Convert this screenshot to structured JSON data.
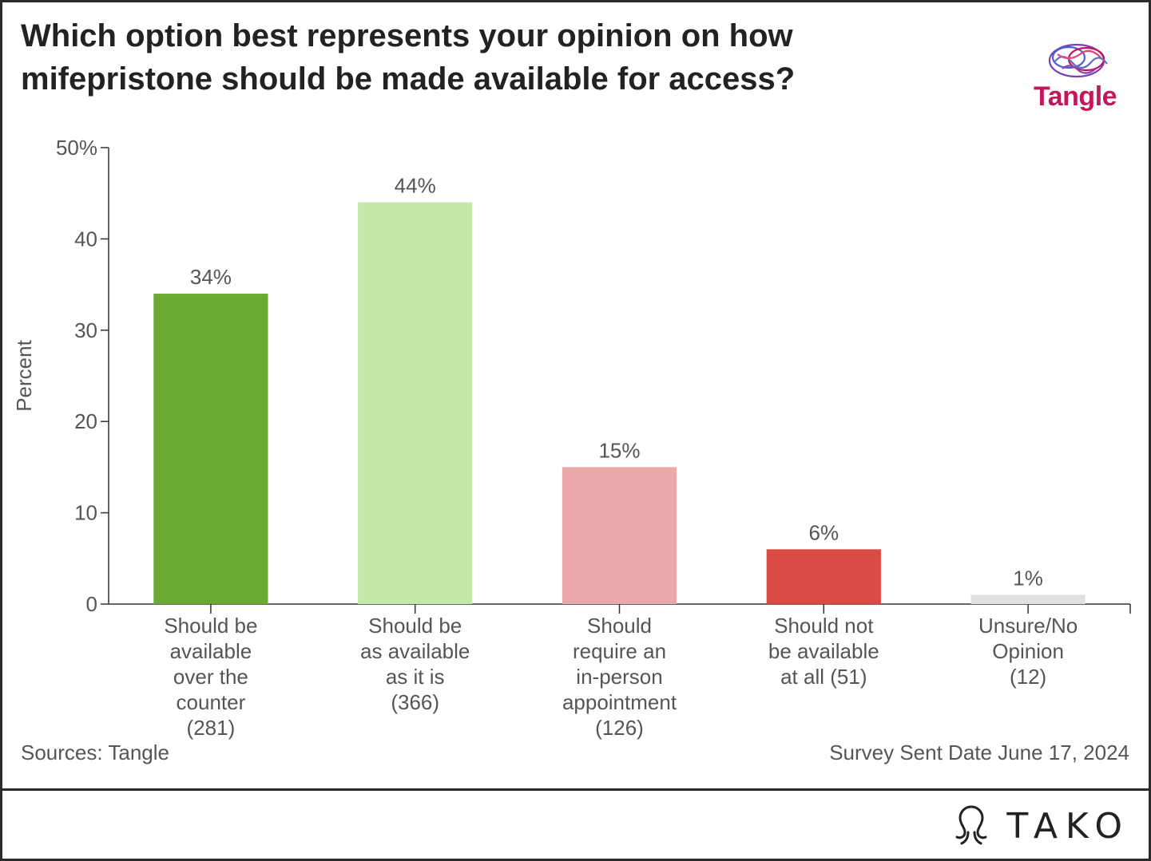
{
  "header": {
    "title": "Which option best represents your opinion on how mifepristone should be made available for access?",
    "logo_text": "Tangle",
    "logo_icon": "brain-icon"
  },
  "chart_data": {
    "type": "bar",
    "ylabel": "Percent",
    "ylim": [
      0,
      50
    ],
    "yticks": [
      0,
      10,
      20,
      30,
      40,
      50
    ],
    "ytick_labels": [
      "0",
      "10",
      "20",
      "30",
      "40",
      "50%"
    ],
    "grid": false,
    "categories": [
      [
        "Should be",
        "available",
        "over the",
        "counter",
        "(281)"
      ],
      [
        "Should be",
        "as available",
        "as it is",
        "(366)"
      ],
      [
        "Should",
        "require an",
        "in-person",
        "appointment",
        "(126)"
      ],
      [
        "Should not",
        "be available",
        "at all (51)"
      ],
      [
        "Unsure/No",
        "Opinion",
        "(12)"
      ]
    ],
    "values": [
      34,
      44,
      15,
      6,
      1
    ],
    "value_labels": [
      "34%",
      "44%",
      "15%",
      "6%",
      "1%"
    ],
    "colors": [
      "#6aaa33",
      "#c4e8a8",
      "#eaa8aa",
      "#d94b44",
      "#e0e0e0"
    ]
  },
  "footer": {
    "source": "Sources: Tangle",
    "date": "Survey Sent Date June 17, 2024"
  },
  "brand": {
    "name": "TAKO",
    "icon": "tako-octopus-icon"
  }
}
